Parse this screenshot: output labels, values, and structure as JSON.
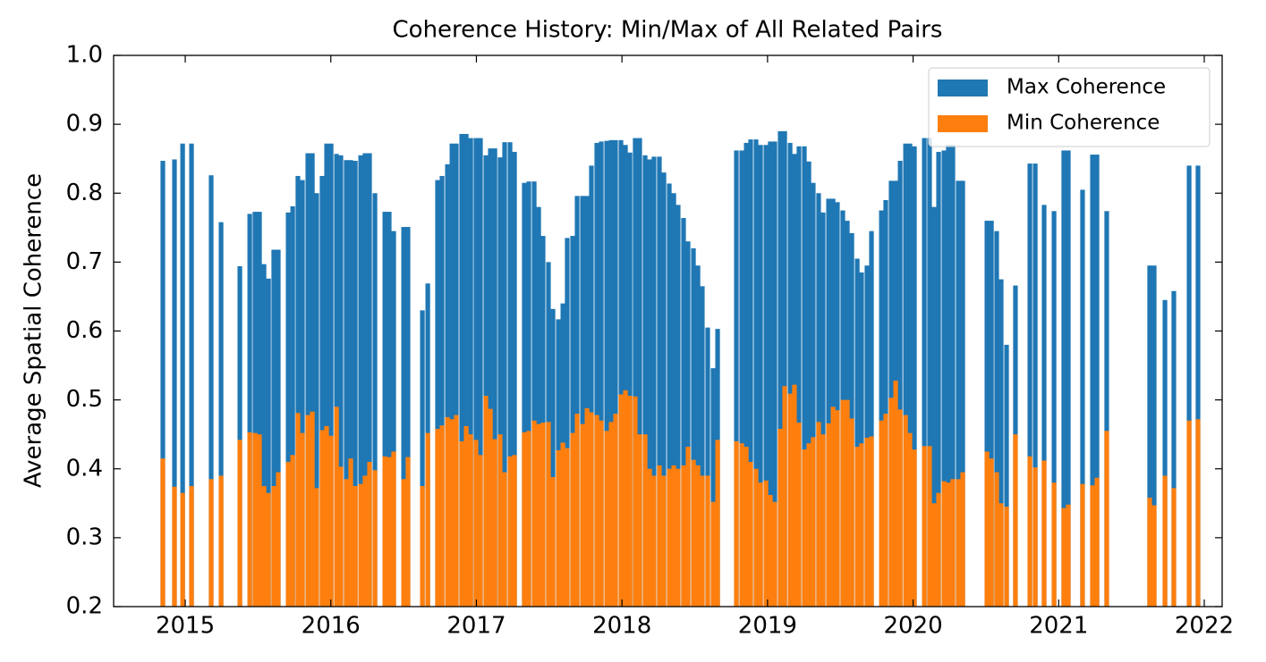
{
  "chart_data": {
    "type": "bar",
    "title": "Coherence History: Min/Max of All Related Pairs",
    "y_label": "Average Spatial Coherence",
    "x": [
      2014.846,
      2014.926,
      2014.982,
      2015.043,
      2015.178,
      2015.246,
      2015.375,
      2015.443,
      2015.479,
      2015.51,
      2015.541,
      2015.572,
      2015.608,
      2015.639,
      2015.707,
      2015.738,
      2015.774,
      2015.805,
      2015.842,
      2015.873,
      2015.903,
      2015.94,
      2015.971,
      2016.002,
      2016.039,
      2016.069,
      2016.106,
      2016.137,
      2016.168,
      2016.205,
      2016.235,
      2016.266,
      2016.303,
      2016.371,
      2016.401,
      2016.432,
      2016.5,
      2016.53,
      2016.629,
      2016.666,
      2016.733,
      2016.764,
      2016.801,
      2016.832,
      2016.862,
      2016.899,
      2016.93,
      2016.961,
      2016.997,
      2017.028,
      2017.065,
      2017.096,
      2017.127,
      2017.163,
      2017.194,
      2017.231,
      2017.262,
      2017.329,
      2017.36,
      2017.397,
      2017.428,
      2017.458,
      2017.495,
      2017.526,
      2017.563,
      2017.594,
      2017.624,
      2017.661,
      2017.692,
      2017.729,
      2017.76,
      2017.79,
      2017.827,
      2017.858,
      2017.895,
      2017.926,
      2017.956,
      2017.993,
      2018.024,
      2018.055,
      2018.091,
      2018.122,
      2018.159,
      2018.19,
      2018.22,
      2018.257,
      2018.288,
      2018.325,
      2018.356,
      2018.386,
      2018.423,
      2018.454,
      2018.491,
      2018.522,
      2018.552,
      2018.589,
      2018.626,
      2018.657,
      2018.786,
      2018.823,
      2018.854,
      2018.884,
      2018.921,
      2018.952,
      2018.989,
      2019.019,
      2019.05,
      2019.087,
      2019.118,
      2019.155,
      2019.185,
      2019.216,
      2019.253,
      2019.284,
      2019.314,
      2019.351,
      2019.382,
      2019.419,
      2019.45,
      2019.48,
      2019.517,
      2019.548,
      2019.579,
      2019.616,
      2019.646,
      2019.683,
      2019.714,
      2019.782,
      2019.812,
      2019.849,
      2019.88,
      2019.911,
      2019.948,
      2019.978,
      2020.009,
      2020.077,
      2020.113,
      2020.144,
      2020.175,
      2020.212,
      2020.242,
      2020.273,
      2020.31,
      2020.341,
      2020.507,
      2020.538,
      2020.574,
      2020.605,
      2020.642,
      2020.703,
      2020.802,
      2020.839,
      2020.9,
      2020.968,
      2021.035,
      2021.066,
      2021.164,
      2021.232,
      2021.263,
      2021.33,
      2021.625,
      2021.656,
      2021.73,
      2021.791,
      2021.896,
      2021.957
    ],
    "series": [
      {
        "name": "Max Coherence",
        "color": "#1f77b4",
        "values": [
          0.847,
          0.849,
          0.872,
          0.872,
          0.826,
          0.758,
          0.694,
          0.77,
          0.773,
          0.773,
          0.697,
          0.676,
          0.718,
          0.718,
          0.772,
          0.781,
          0.825,
          0.819,
          0.858,
          0.858,
          0.8,
          0.825,
          0.872,
          0.872,
          0.857,
          0.855,
          0.848,
          0.848,
          0.847,
          0.855,
          0.858,
          0.858,
          0.8,
          0.773,
          0.773,
          0.745,
          0.751,
          0.751,
          0.63,
          0.669,
          0.819,
          0.825,
          0.842,
          0.872,
          0.872,
          0.886,
          0.886,
          0.88,
          0.88,
          0.88,
          0.855,
          0.865,
          0.865,
          0.852,
          0.874,
          0.874,
          0.86,
          0.815,
          0.817,
          0.817,
          0.78,
          0.738,
          0.7,
          0.632,
          0.617,
          0.64,
          0.735,
          0.738,
          0.796,
          0.796,
          0.796,
          0.84,
          0.873,
          0.875,
          0.876,
          0.877,
          0.877,
          0.877,
          0.87,
          0.859,
          0.88,
          0.88,
          0.855,
          0.849,
          0.853,
          0.853,
          0.83,
          0.814,
          0.8,
          0.783,
          0.764,
          0.73,
          0.72,
          0.695,
          0.665,
          0.605,
          0.546,
          0.603,
          0.862,
          0.862,
          0.873,
          0.878,
          0.878,
          0.87,
          0.87,
          0.875,
          0.875,
          0.89,
          0.89,
          0.873,
          0.857,
          0.868,
          0.868,
          0.846,
          0.815,
          0.8,
          0.772,
          0.792,
          0.792,
          0.787,
          0.775,
          0.76,
          0.742,
          0.705,
          0.685,
          0.695,
          0.745,
          0.775,
          0.79,
          0.818,
          0.818,
          0.847,
          0.872,
          0.872,
          0.868,
          0.88,
          0.88,
          0.78,
          0.86,
          0.862,
          0.87,
          0.87,
          0.818,
          0.818,
          0.76,
          0.76,
          0.745,
          0.675,
          0.58,
          0.666,
          0.843,
          0.843,
          0.783,
          0.774,
          0.862,
          0.862,
          0.805,
          0.856,
          0.856,
          0.774,
          0.695,
          0.695,
          0.645,
          0.658,
          0.84,
          0.84
        ]
      },
      {
        "name": "Min Coherence",
        "color": "#ff7f0e",
        "values": [
          0.415,
          0.374,
          0.365,
          0.375,
          0.385,
          0.39,
          0.442,
          0.453,
          0.452,
          0.45,
          0.375,
          0.365,
          0.375,
          0.395,
          0.41,
          0.42,
          0.481,
          0.452,
          0.478,
          0.483,
          0.372,
          0.456,
          0.462,
          0.448,
          0.49,
          0.403,
          0.385,
          0.415,
          0.375,
          0.378,
          0.39,
          0.41,
          0.398,
          0.418,
          0.417,
          0.425,
          0.385,
          0.417,
          0.375,
          0.452,
          0.458,
          0.463,
          0.475,
          0.472,
          0.478,
          0.44,
          0.462,
          0.45,
          0.442,
          0.42,
          0.506,
          0.487,
          0.443,
          0.45,
          0.395,
          0.418,
          0.42,
          0.453,
          0.455,
          0.47,
          0.465,
          0.467,
          0.468,
          0.388,
          0.427,
          0.438,
          0.43,
          0.452,
          0.48,
          0.465,
          0.488,
          0.482,
          0.478,
          0.47,
          0.455,
          0.468,
          0.48,
          0.508,
          0.514,
          0.506,
          0.505,
          0.45,
          0.45,
          0.4,
          0.39,
          0.405,
          0.39,
          0.4,
          0.405,
          0.4,
          0.405,
          0.432,
          0.413,
          0.405,
          0.39,
          0.39,
          0.352,
          0.442,
          0.44,
          0.437,
          0.432,
          0.41,
          0.4,
          0.38,
          0.383,
          0.362,
          0.352,
          0.458,
          0.52,
          0.509,
          0.522,
          0.467,
          0.428,
          0.437,
          0.446,
          0.468,
          0.45,
          0.466,
          0.49,
          0.485,
          0.5,
          0.5,
          0.473,
          0.432,
          0.437,
          0.445,
          0.447,
          0.47,
          0.48,
          0.503,
          0.528,
          0.486,
          0.478,
          0.452,
          0.428,
          0.433,
          0.433,
          0.35,
          0.365,
          0.382,
          0.38,
          0.385,
          0.385,
          0.395,
          0.425,
          0.415,
          0.395,
          0.35,
          0.345,
          0.45,
          0.418,
          0.402,
          0.412,
          0.38,
          0.343,
          0.348,
          0.378,
          0.376,
          0.387,
          0.455,
          0.358,
          0.347,
          0.39,
          0.372,
          0.47,
          0.472
        ]
      }
    ],
    "xlim": [
      2014.508,
      2022.123
    ],
    "xticks": [
      2015,
      2016,
      2017,
      2018,
      2019,
      2020,
      2021,
      2022
    ],
    "ylim": [
      0.2,
      1
    ],
    "yticks": [
      0.2,
      0.3,
      0.4,
      0.5,
      0.6,
      0.7,
      0.8,
      0.9,
      {
        "value": 1,
        "label": "1.0"
      }
    ],
    "grid": false,
    "legend": "upper right"
  }
}
